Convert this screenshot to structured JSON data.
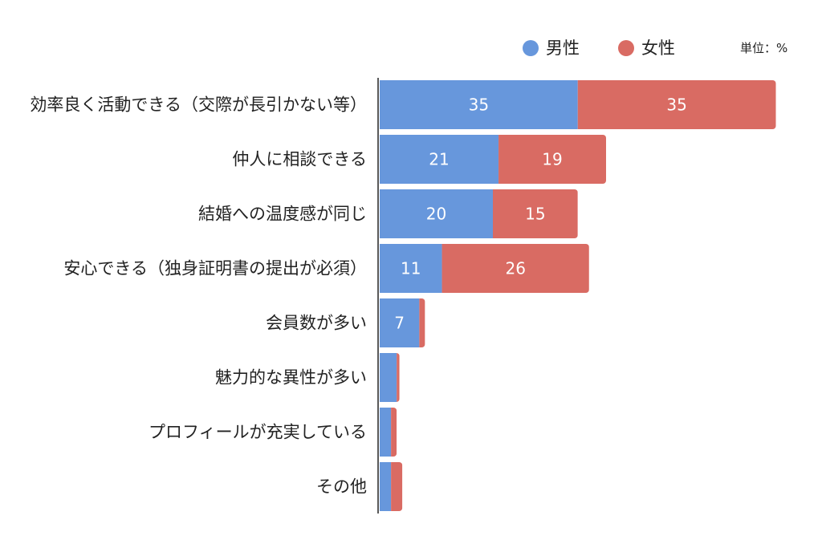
{
  "chart_data": {
    "type": "bar",
    "orientation": "horizontal",
    "stacked": true,
    "unit_label": "単位：%",
    "legend_position": "top-right",
    "categories": [
      "効率良く活動できる（交際が長引かない等）",
      "仲人に相談できる",
      "結婚への温度感が同じ",
      "安心できる（独身証明書の提出が必須）",
      "会員数が多い",
      "魅力的な異性が多い",
      "プロフィールが充実している",
      "その他"
    ],
    "series": [
      {
        "name": "男性",
        "color": "#6797dc",
        "values": [
          35,
          21,
          20,
          11,
          7,
          3,
          2,
          2
        ],
        "labels": [
          "35",
          "21",
          "20",
          "11",
          "7",
          "",
          "",
          ""
        ]
      },
      {
        "name": "女性",
        "color": "#d96b63",
        "values": [
          35,
          19,
          15,
          26,
          1,
          0.5,
          1,
          2
        ],
        "labels": [
          "35",
          "19",
          "15",
          "26",
          "",
          "",
          "",
          ""
        ]
      }
    ],
    "xlim": [
      0,
      70
    ],
    "grid": false
  }
}
